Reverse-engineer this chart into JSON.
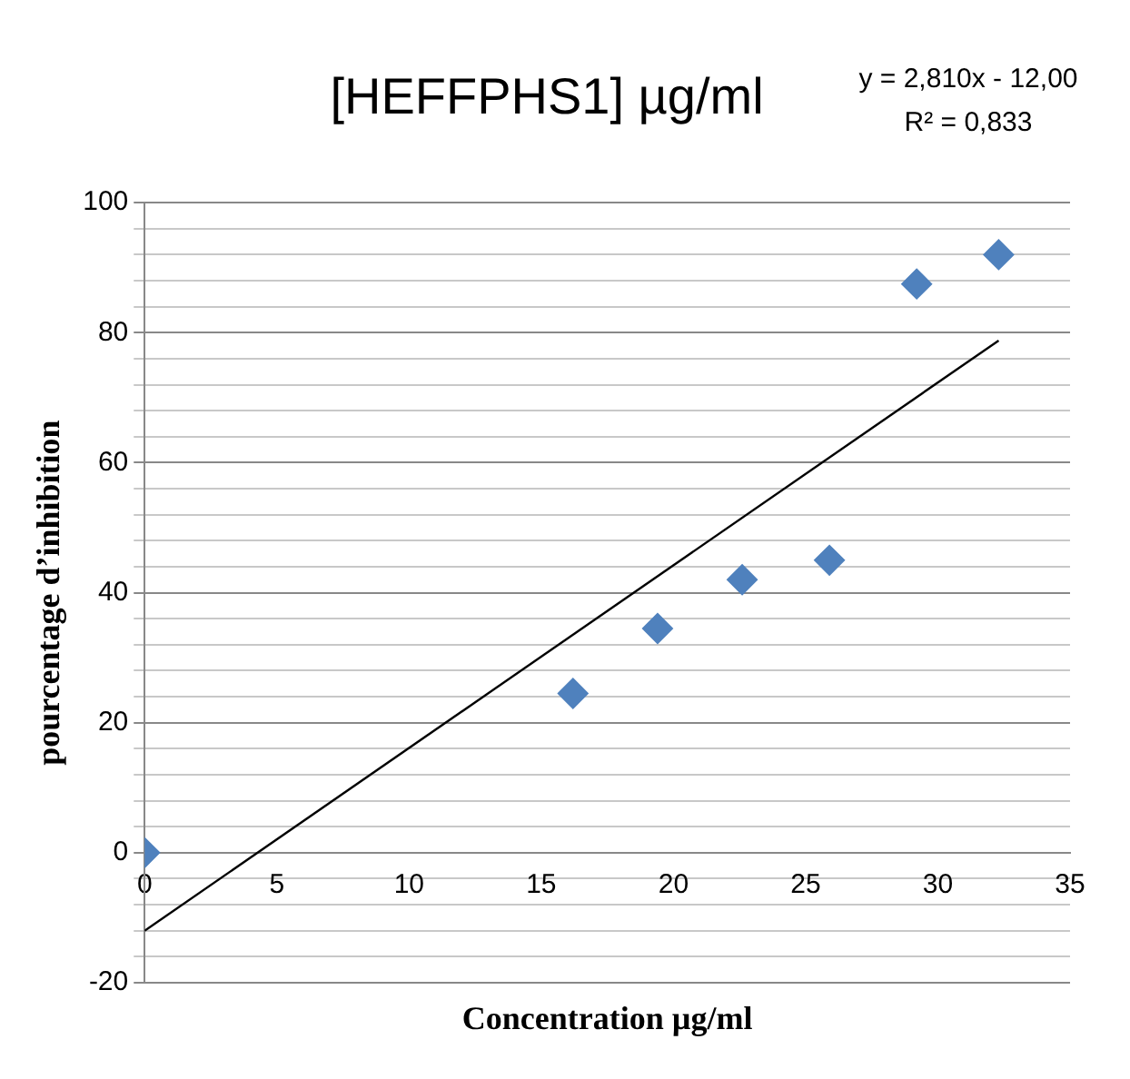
{
  "chart_data": {
    "type": "scatter",
    "title": "[HEFFPHS1] µg/ml",
    "xlabel": "Concentration µg/ml",
    "ylabel": "pourcentage d’inhibition",
    "annotations": [
      "y = 2,810x - 12,00",
      "R² = 0,833"
    ],
    "series": [
      {
        "color": "#4f81bd",
        "marker": "diamond",
        "x": [
          0,
          16.2,
          19.4,
          22.6,
          25.9,
          29.2,
          32.3
        ],
        "values": [
          0,
          24.5,
          34.5,
          42,
          45,
          87.5,
          92
        ]
      },
      {
        "type": "line",
        "color": "#000000",
        "marker": "none",
        "x": [
          0,
          32.3
        ],
        "values": [
          -12,
          78.8
        ]
      }
    ],
    "xlim": [
      0,
      35
    ],
    "xticks": [
      0,
      5,
      10,
      15,
      20,
      25,
      30,
      35
    ],
    "ylim": [
      -20,
      100
    ],
    "yticks": [
      -20,
      {
        "value": -16,
        "label": null
      },
      {
        "value": -12,
        "label": null
      },
      {
        "value": -8,
        "label": null
      },
      {
        "value": -4,
        "label": null
      },
      0,
      {
        "value": 4,
        "label": null
      },
      {
        "value": 8,
        "label": null
      },
      {
        "value": 12,
        "label": null
      },
      {
        "value": 16,
        "label": null
      },
      20,
      {
        "value": 24,
        "label": null
      },
      {
        "value": 28,
        "label": null
      },
      {
        "value": 32,
        "label": null
      },
      {
        "value": 36,
        "label": null
      },
      40,
      {
        "value": 44,
        "label": null
      },
      {
        "value": 48,
        "label": null
      },
      {
        "value": 52,
        "label": null
      },
      {
        "value": 56,
        "label": null
      },
      60,
      {
        "value": 64,
        "label": null
      },
      {
        "value": 68,
        "label": null
      },
      {
        "value": 72,
        "label": null
      },
      {
        "value": 76,
        "label": null
      },
      80,
      {
        "value": 84,
        "label": null
      },
      {
        "value": 88,
        "label": null
      },
      {
        "value": 92,
        "label": null
      },
      {
        "value": 96,
        "label": null
      },
      100
    ],
    "grid": "y",
    "legend": false
  }
}
